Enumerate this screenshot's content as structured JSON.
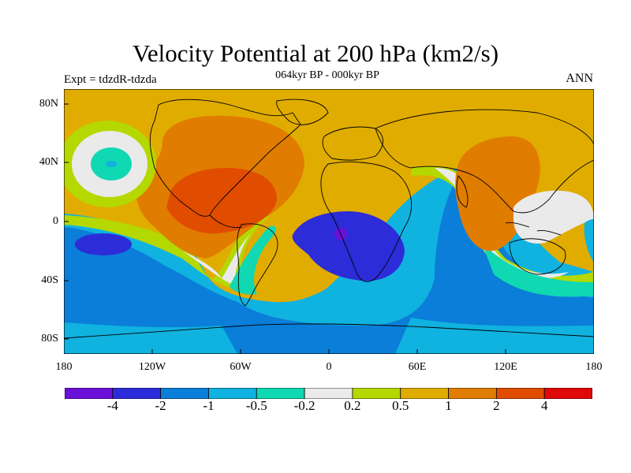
{
  "title": "Velocity Potential at 200 hPa (km2/s)",
  "subtitle": "064kyr BP - 000kyr BP",
  "left_label": "Expt = tdzdR-tdzda",
  "right_label": "ANN",
  "y_ticks": [
    "80N",
    "40N",
    "0",
    "40S",
    "80S"
  ],
  "x_ticks": [
    "180",
    "120W",
    "60W",
    "0",
    "60E",
    "120E",
    "180"
  ],
  "colorbar": {
    "colors": [
      "#6a10d8",
      "#2c2cd8",
      "#0a7ed8",
      "#10b2e0",
      "#10d8b2",
      "#eaeaea",
      "#b4d800",
      "#e0ac00",
      "#e07c00",
      "#e04c00",
      "#e00808"
    ],
    "labels": [
      "-4",
      "-2",
      "-1",
      "-0.5",
      "-0.2",
      "0.2",
      "0.5",
      "1",
      "2",
      "4"
    ]
  }
}
